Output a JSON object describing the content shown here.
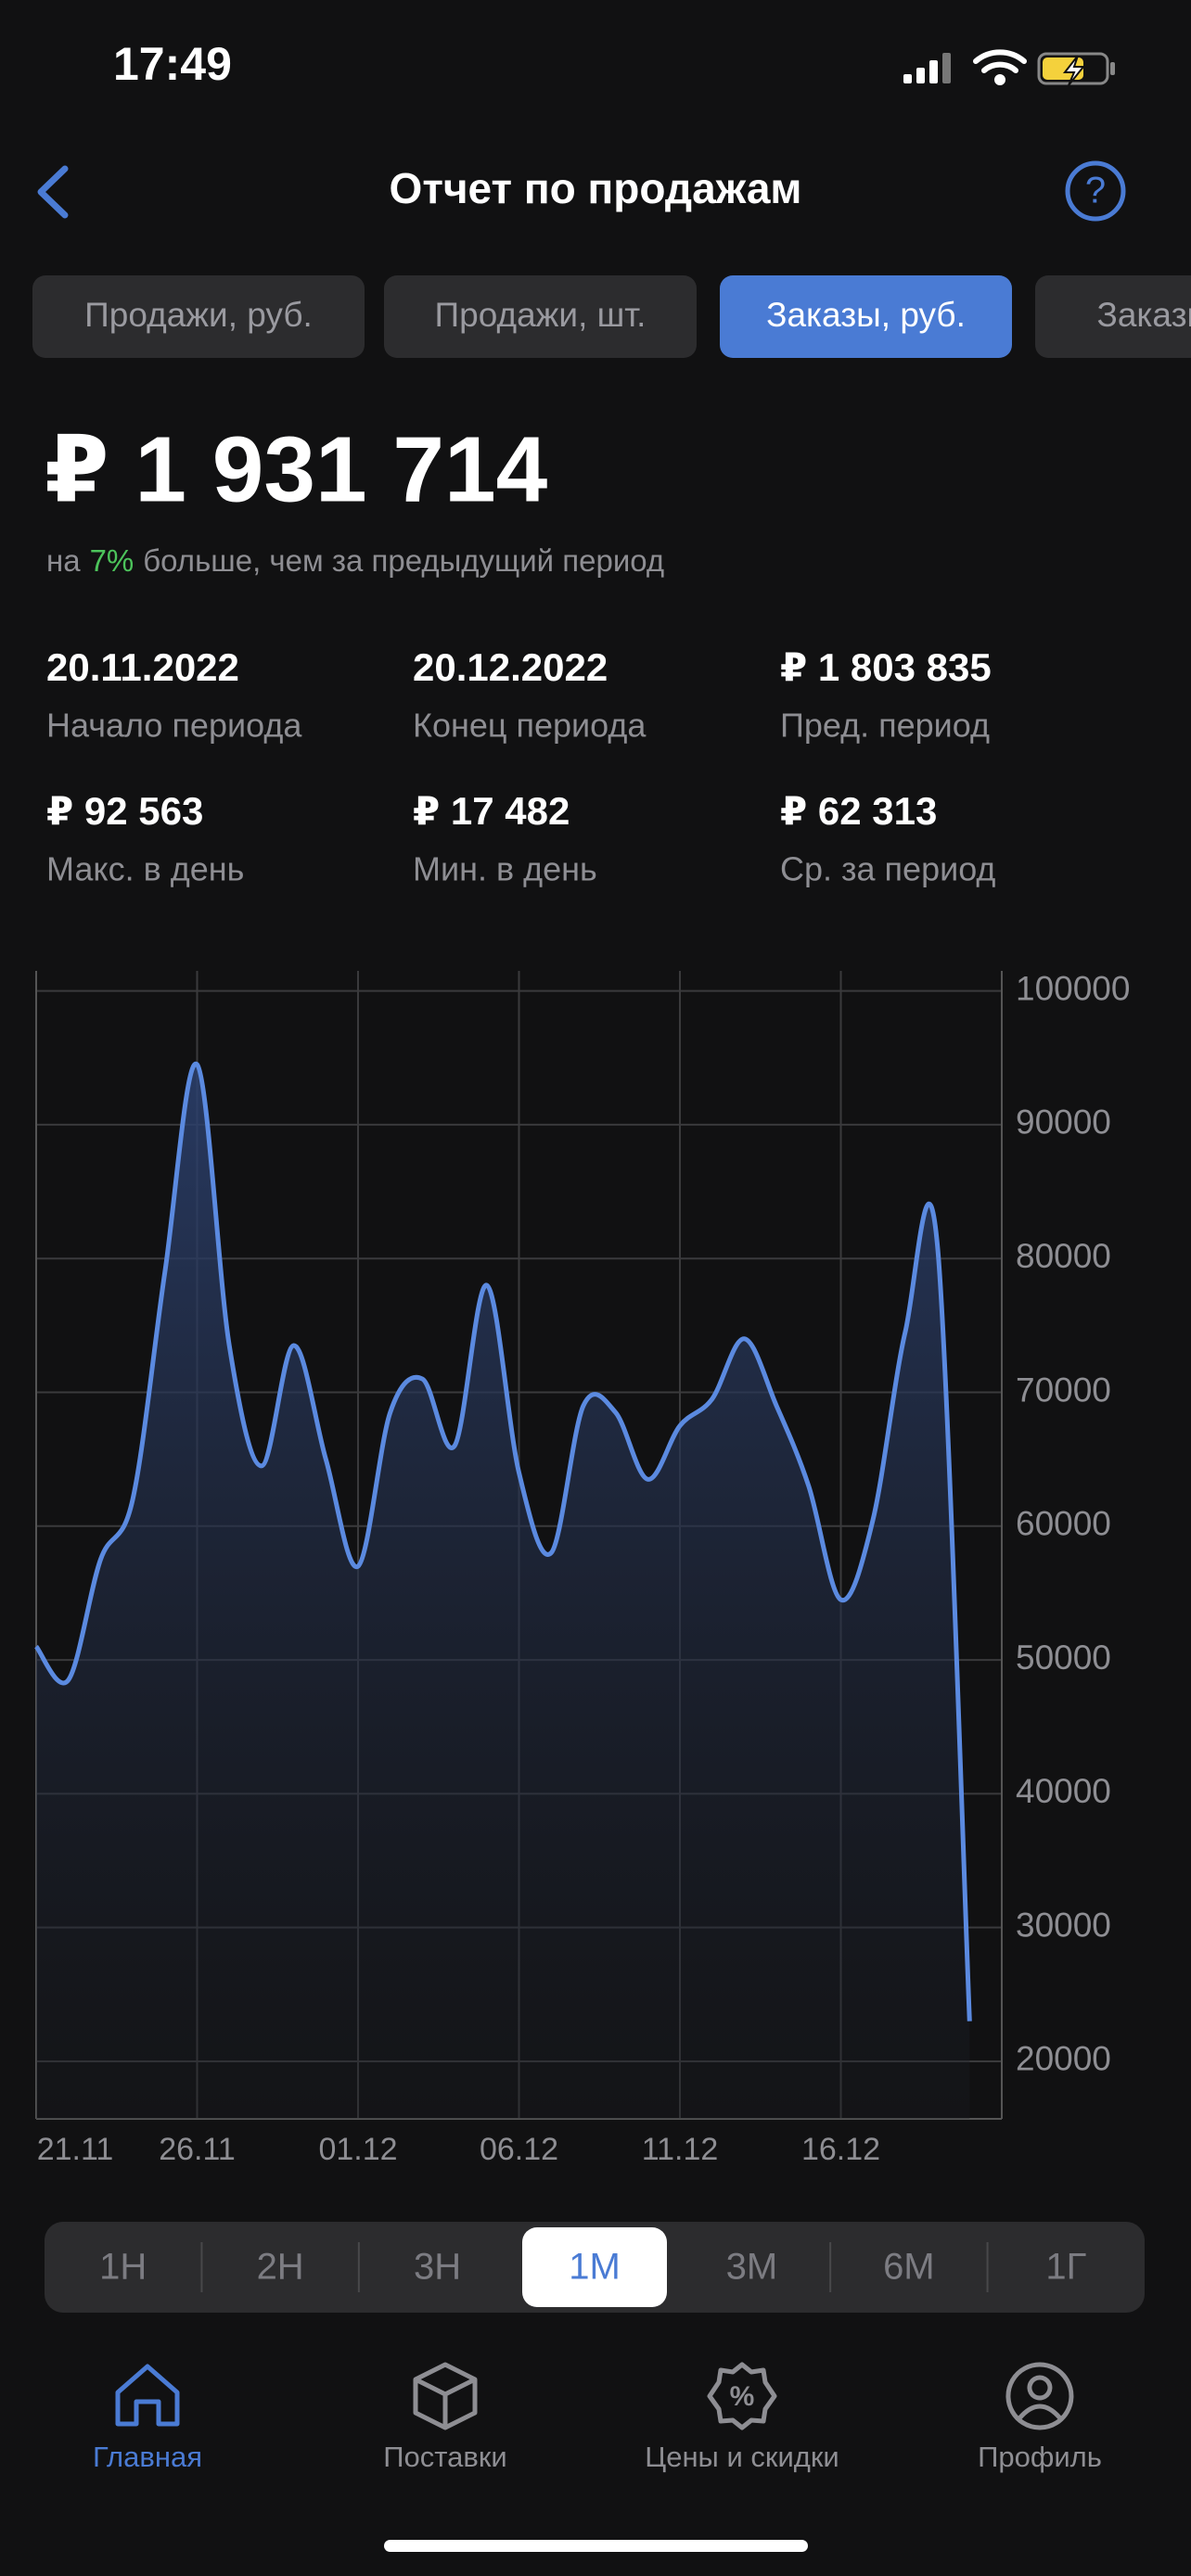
{
  "status_bar": {
    "time": "17:49"
  },
  "header": {
    "title": "Отчет по продажам"
  },
  "tabs": [
    "Продажи, руб.",
    "Продажи, шт.",
    "Заказы, руб.",
    "Заказы, шт."
  ],
  "active_tab": 2,
  "summary": {
    "total": "₽ 1 931 714",
    "change_prefix": "на",
    "change_value": "7%",
    "change_suffix": "больше, чем за предыдущий период"
  },
  "stats": [
    {
      "value": "20.11.2022",
      "label": "Начало периода"
    },
    {
      "value": "20.12.2022",
      "label": "Конец периода"
    },
    {
      "value": "₽  1 803 835",
      "label": "Пред. период"
    },
    {
      "value": "₽ 92 563",
      "label": "Макс. в день"
    },
    {
      "value": "₽ 17 482",
      "label": "Мин. в день"
    },
    {
      "value": "₽ 62 313",
      "label": "Ср. за период"
    }
  ],
  "chart_data": {
    "type": "area",
    "color": "#5b8ae0",
    "categories": [
      "21.11",
      null,
      null,
      null,
      null,
      "26.11",
      null,
      null,
      null,
      null,
      "01.12",
      null,
      null,
      null,
      null,
      "06.12",
      null,
      null,
      null,
      null,
      "11.12",
      null,
      null,
      null,
      null,
      "16.12",
      null,
      null,
      null,
      null
    ],
    "values": [
      51000,
      48500,
      57500,
      62000,
      79000,
      94500,
      73500,
      64500,
      73500,
      65000,
      57000,
      68500,
      71000,
      66000,
      78000,
      64000,
      58000,
      69000,
      68500,
      63500,
      67500,
      69500,
      74000,
      69000,
      63000,
      54500,
      60500,
      74500,
      81000,
      23000
    ],
    "ylim": [
      15700,
      101500
    ],
    "yticks": [
      20000,
      30000,
      40000,
      50000,
      60000,
      70000,
      80000,
      90000,
      100000
    ],
    "grid": true
  },
  "periods": [
    "1Н",
    "2Н",
    "3Н",
    "1М",
    "3М",
    "6М",
    "1Г"
  ],
  "active_period": 3,
  "nav": [
    "Главная",
    "Поставки",
    "Цены и скидки",
    "Профиль"
  ],
  "active_nav": 0
}
